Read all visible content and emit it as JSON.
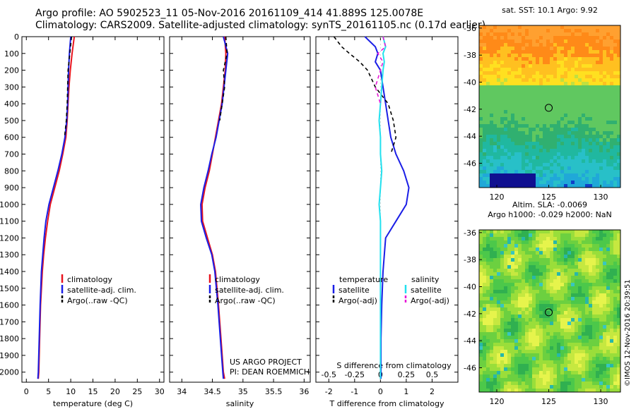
{
  "title": {
    "line1": "Argo profile: AO 5902523_11 05-Nov-2016 20161109_414 41.889S 125.0078E",
    "line2": "Climatology: CARS2009. Satellite-adjusted climatology: synTS_20161105.nc (0.17d earlier)"
  },
  "legend": {
    "climatology": "climatology",
    "satellite_adj": "satellite-adj. clim.",
    "argo_raw": "Argo(..raw -QC)",
    "temperature_head": "temperature",
    "salinity_head": "salinity",
    "satellite": "satellite",
    "argo_adj": "Argo(-adj)"
  },
  "credits": {
    "line1": "US ARGO PROJECT",
    "line2": "PI: DEAN ROEMMICH"
  },
  "timestamp": "©IMOS 12-Nov-2016 20:39:51",
  "colors": {
    "red": "#e8141e",
    "blue": "#1a1ee6",
    "black": "#000000",
    "cyan": "#22e0ee",
    "magenta": "#e818d8"
  },
  "chart_data": [
    {
      "type": "line",
      "xlabel": "temperature (deg C)",
      "ylabel": "",
      "xlim": [
        -1,
        31
      ],
      "ylim": [
        2060,
        0
      ],
      "xticks": [
        "0",
        "5",
        "10",
        "15",
        "20",
        "25",
        "30"
      ],
      "yticks": [
        "0",
        "100",
        "200",
        "300",
        "400",
        "500",
        "600",
        "700",
        "800",
        "900",
        "1000",
        "1100",
        "1200",
        "1300",
        "1400",
        "1500",
        "1600",
        "1700",
        "1800",
        "1900",
        "2000"
      ],
      "depth": [
        0,
        100,
        200,
        300,
        400,
        500,
        600,
        700,
        800,
        900,
        1000,
        1100,
        1200,
        1300,
        1400,
        1600,
        1800,
        2000,
        2040
      ],
      "series": [
        {
          "name": "climatology",
          "color": "red",
          "values": [
            10.8,
            10.3,
            9.9,
            9.6,
            9.4,
            9.2,
            8.9,
            8.2,
            7.4,
            6.4,
            5.4,
            4.8,
            4.3,
            3.9,
            3.6,
            3.2,
            3.0,
            2.8,
            2.7
          ]
        },
        {
          "name": "satellite-adj. clim.",
          "color": "blue",
          "values": [
            10.0,
            9.7,
            9.5,
            9.4,
            9.3,
            9.1,
            8.7,
            8.0,
            7.1,
            6.1,
            5.1,
            4.4,
            4.0,
            3.7,
            3.4,
            3.1,
            2.9,
            2.7,
            2.6
          ]
        },
        {
          "name": "Argo(..raw -QC)",
          "color": "black",
          "dash": true,
          "values": [
            10.2,
            9.8,
            9.4,
            9.3,
            9.2,
            9.0,
            8.6
          ]
        }
      ]
    },
    {
      "type": "line",
      "xlabel": "salinity",
      "xlim": [
        33.8,
        36.1
      ],
      "ylim": [
        2060,
        0
      ],
      "xticks": [
        "34",
        "34.5",
        "35",
        "35.5",
        "36"
      ],
      "depth": [
        0,
        100,
        200,
        300,
        400,
        500,
        600,
        700,
        800,
        900,
        1000,
        1100,
        1200,
        1300,
        1400,
        1600,
        1800,
        2000,
        2040
      ],
      "series": [
        {
          "name": "climatology",
          "color": "red",
          "values": [
            34.7,
            34.72,
            34.71,
            34.68,
            34.65,
            34.6,
            34.55,
            34.5,
            34.45,
            34.38,
            34.33,
            34.34,
            34.42,
            34.5,
            34.55,
            34.6,
            34.64,
            34.68,
            34.7
          ]
        },
        {
          "name": "satellite-adj. clim.",
          "color": "blue",
          "values": [
            34.68,
            34.75,
            34.72,
            34.69,
            34.66,
            34.61,
            34.56,
            34.49,
            34.43,
            34.36,
            34.31,
            34.32,
            34.4,
            34.49,
            34.54,
            34.59,
            34.63,
            34.67,
            34.68
          ]
        },
        {
          "name": "Argo(..raw -QC)",
          "color": "black",
          "dash": true,
          "values": [
            34.72,
            34.74,
            34.68,
            34.7,
            34.66,
            34.62
          ]
        }
      ]
    },
    {
      "type": "line",
      "xlabel": "T difference from climatology",
      "secondary_label": "S difference from climatology",
      "xlim": [
        -2.5,
        3.0
      ],
      "ylim": [
        2060,
        0
      ],
      "xticks": [
        "-2",
        "-1",
        "0",
        "1",
        "2"
      ],
      "secondary_ticks": [
        "-0.5",
        "-0.25",
        "0",
        "0.25",
        "0.5"
      ],
      "depth": [
        0,
        60,
        100,
        150,
        200,
        300,
        400,
        500,
        600,
        700,
        800,
        900,
        1000,
        1100,
        1200,
        1400,
        1600,
        1800,
        2000,
        2040
      ],
      "series": [
        {
          "name": "temperature satellite",
          "color": "blue",
          "values": [
            -0.6,
            -0.2,
            -0.1,
            -0.2,
            0.0,
            0.1,
            0.2,
            0.3,
            0.4,
            0.6,
            0.9,
            1.1,
            1.0,
            0.6,
            0.2,
            0.1,
            0.05,
            0.02,
            0.02,
            0.02
          ]
        },
        {
          "name": "temperature Argo(-adj)",
          "color": "black",
          "dash": true,
          "values": [
            -1.8,
            -1.5,
            -1.2,
            -0.8,
            -0.5,
            -0.2,
            0.3,
            0.5,
            0.6,
            0.4
          ]
        },
        {
          "name": "salinity satellite",
          "color": "cyan",
          "values": [
            0.1,
            0.2,
            0.1,
            0.15,
            0.1,
            0.05,
            0.0,
            -0.05,
            0.0,
            0.0,
            0.05,
            0.0,
            -0.05,
            0.0,
            0.0,
            0.0,
            0.0,
            0.0,
            0.0,
            0.0
          ]
        },
        {
          "name": "salinity Argo(-adj)",
          "color": "magenta",
          "dash": true,
          "values": [
            0.1,
            0.2,
            -0.1,
            0.1,
            0.0,
            -0.2,
            0.0
          ]
        }
      ]
    },
    {
      "type": "heatmap",
      "title": "sat. SST: 10.1  Argo: 9.92",
      "xlim": [
        118.3,
        131.9
      ],
      "ylim": [
        -47.8,
        -35.8
      ],
      "xticks": [
        "120",
        "125",
        "130"
      ],
      "yticks": [
        "-36",
        "-38",
        "-40",
        "-42",
        "-44",
        "-46"
      ],
      "marker": {
        "lon": 125.0,
        "lat": -41.9
      },
      "palette": [
        "#ffa030",
        "#ff8a18",
        "#ffc020",
        "#ffe020",
        "#c0e040",
        "#60c860",
        "#30b070",
        "#20b8a0",
        "#28c0c8",
        "#20a8d8",
        "#1040c8",
        "#101090"
      ]
    },
    {
      "type": "heatmap",
      "title": "Altim. SLA: -0.0069",
      "subtitle": "Argo h1000: -0.029  h2000: NaN",
      "xlim": [
        118.3,
        131.9
      ],
      "ylim": [
        -47.8,
        -35.8
      ],
      "xticks": [
        "120",
        "125",
        "130"
      ],
      "yticks": [
        "-36",
        "-38",
        "-40",
        "-42",
        "-44",
        "-46"
      ],
      "marker": {
        "lon": 125.0,
        "lat": -41.9
      },
      "palette": [
        "#30b050",
        "#4cc84a",
        "#6cd040",
        "#9ade3a",
        "#c6e840",
        "#e6f44c",
        "#28b8a8",
        "#38c6c0"
      ]
    }
  ]
}
